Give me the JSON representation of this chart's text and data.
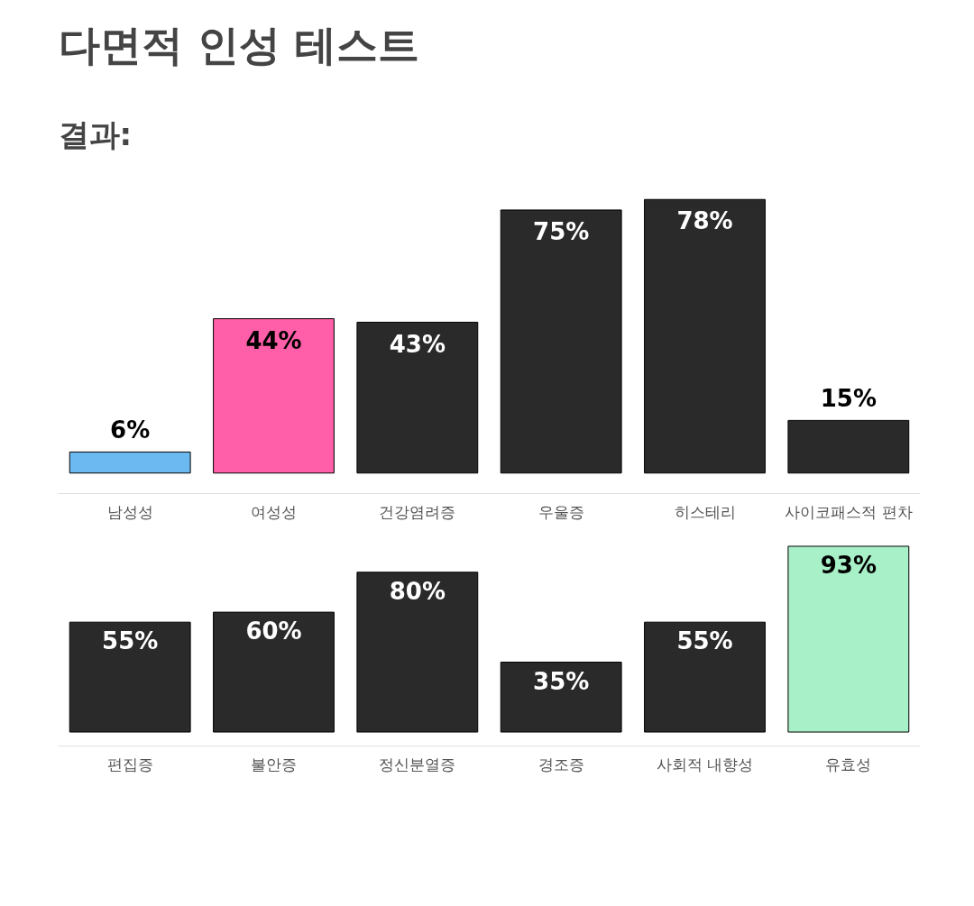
{
  "chart_data": [
    {
      "type": "bar",
      "title": "다면적 인성 테스트",
      "subtitle": "결과:",
      "categories": [
        "남성성",
        "여성성",
        "건강염려증",
        "우울증",
        "히스테리",
        "사이코패스적 편차"
      ],
      "values": [
        6,
        44,
        43,
        75,
        78,
        15
      ],
      "value_labels": [
        "6%",
        "44%",
        "43%",
        "75%",
        "78%",
        "15%"
      ],
      "colors": [
        "#6cb8f0",
        "#ff5fa8",
        "#2a2a2a",
        "#2a2a2a",
        "#2a2a2a",
        "#2a2a2a"
      ],
      "tick_labels": "x"
    },
    {
      "type": "bar",
      "categories": [
        "편집증",
        "불안증",
        "정신분열증",
        "경조증",
        "사회적 내향성",
        "유효성"
      ],
      "values": [
        55,
        60,
        80,
        35,
        55,
        93
      ],
      "value_labels": [
        "55%",
        "60%",
        "80%",
        "35%",
        "55%",
        "93%"
      ],
      "colors": [
        "#2a2a2a",
        "#2a2a2a",
        "#2a2a2a",
        "#2a2a2a",
        "#2a2a2a",
        "#a8f0c8"
      ],
      "tick_labels": "x"
    }
  ]
}
